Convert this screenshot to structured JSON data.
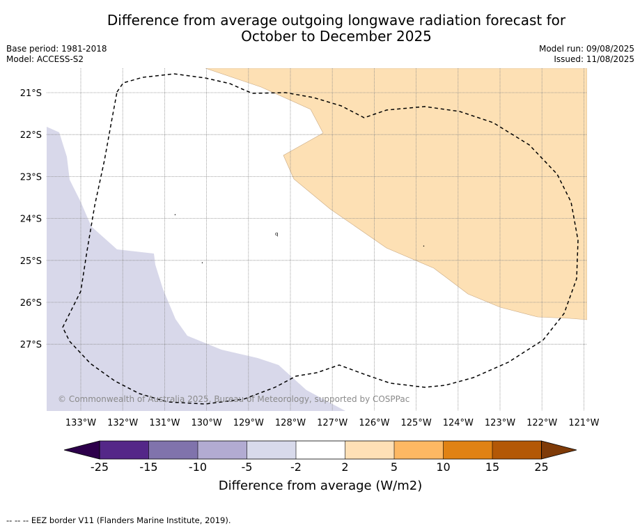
{
  "header": {
    "title_line1": "Difference from average outgoing longwave radiation forecast for",
    "title_line2": "October to December 2025",
    "base_period": "Base period: 1981-2018",
    "model": "Model: ACCESS-S2",
    "model_run": "Model run: 09/08/2025",
    "issued": "Issued: 11/08/2025"
  },
  "map": {
    "lat_labels": [
      "21°S",
      "22°S",
      "23°S",
      "24°S",
      "25°S",
      "26°S",
      "27°S"
    ],
    "lon_labels": [
      "133°W",
      "132°W",
      "131°W",
      "130°W",
      "129°W",
      "128°W",
      "127°W",
      "126°W",
      "125°W",
      "124°W",
      "123°W",
      "122°W",
      "121°W"
    ],
    "copyright": "© Commonwealth of Australia 2025, Bureau of Meteorology, supported by COSPPac",
    "region_colors": {
      "negative_2_to_5": "#d8d8ea",
      "positive_2_to_5": "#fde0b4"
    }
  },
  "colorbar": {
    "title": "Difference from average (W/m2)",
    "tick_labels": [
      "-25",
      "-15",
      "-10",
      "-5",
      "-2",
      "2",
      "5",
      "10",
      "15",
      "25"
    ],
    "colors": [
      "#2d004b",
      "#542788",
      "#8073ac",
      "#b2abd2",
      "#d8daeb",
      "#ffffff",
      "#fee0b6",
      "#fdb863",
      "#e08214",
      "#b35806",
      "#7f3b08"
    ]
  },
  "footer": {
    "legend_text": "-- -- -- EEZ border V11 (Flanders Marine Institute, 2019)."
  }
}
